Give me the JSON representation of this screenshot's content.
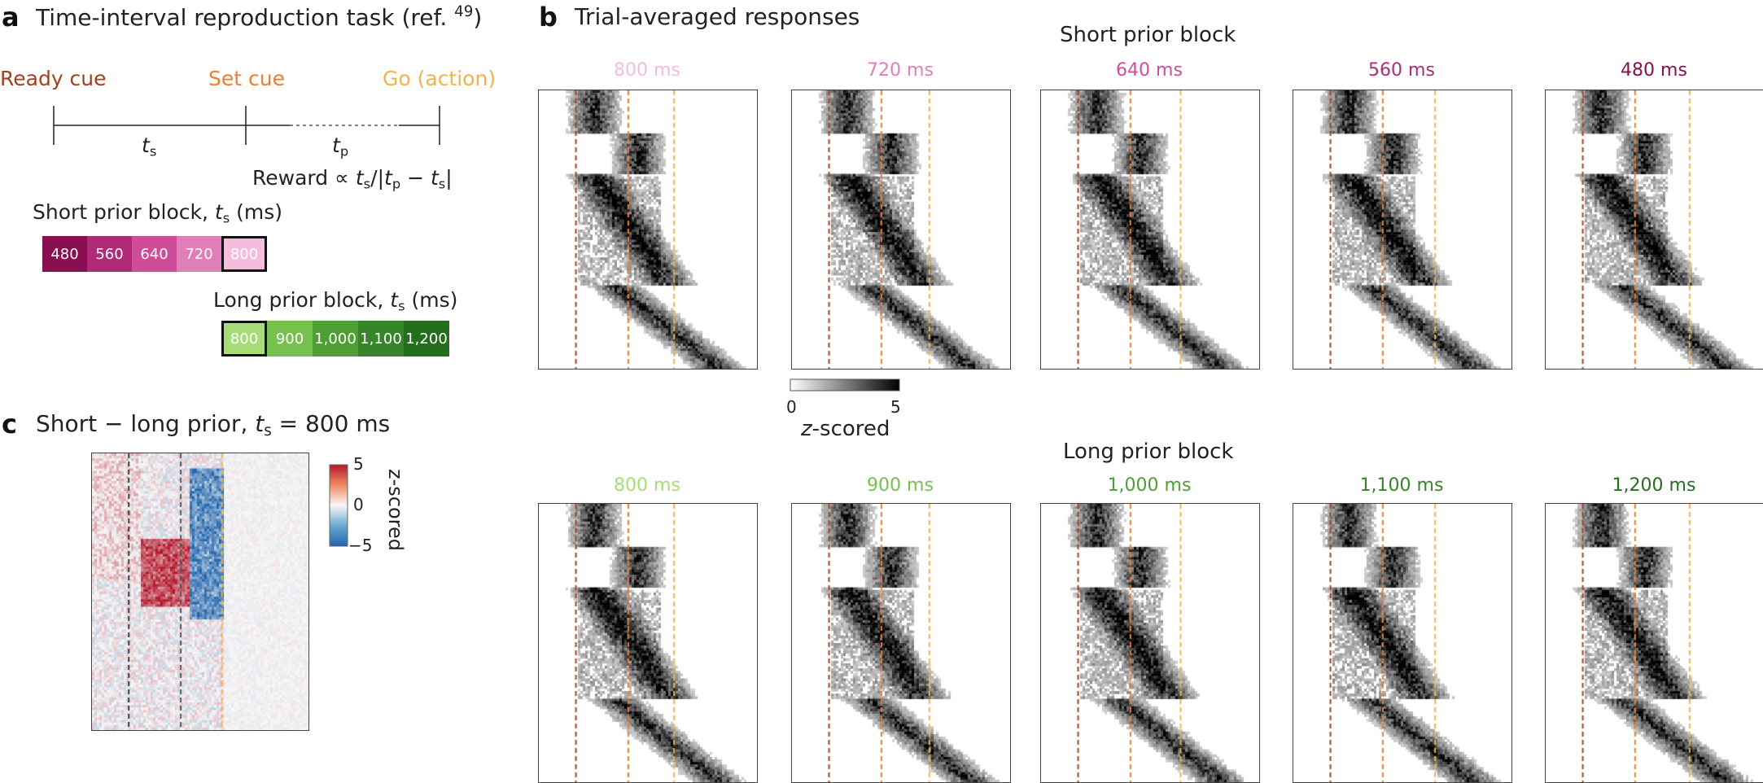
{
  "panel_a": {
    "letter": "a",
    "title": "Time-interval reproduction task (ref. ",
    "ref_num": "49",
    "title_close": ")",
    "ready_cue": "Ready cue",
    "set_cue": "Set cue",
    "go_cue": "Go (action)",
    "ts_main": "t",
    "ts_sub": "s",
    "tp_main": "t",
    "tp_sub": "p",
    "reward_text": "Reward ∝ ",
    "reward_formula": "t/|t − t|",
    "short_block_label": "Short prior block, ",
    "long_block_label": "Long prior block, ",
    "ms_unit": " (ms)",
    "short_values": [
      "480",
      "560",
      "640",
      "720",
      "800"
    ],
    "long_values": [
      "800",
      "900",
      "1,000",
      "1,100",
      "1,200"
    ],
    "colors": {
      "ready": "#a0421b",
      "set": "#ee7d2f",
      "go": "#f5b24c",
      "short": [
        "#8a0f51",
        "#b02a78",
        "#cf4d98",
        "#e07fb7",
        "#f4bddb"
      ],
      "long": [
        "#a8dc78",
        "#78c04e",
        "#4d9e34",
        "#37852a",
        "#256e1e"
      ]
    }
  },
  "panel_b": {
    "letter": "b",
    "title": "Trial-averaged responses",
    "short_block_title": "Short prior block",
    "long_block_title": "Long prior block",
    "short_conditions": [
      "800 ms",
      "720 ms",
      "640 ms",
      "560 ms",
      "480 ms"
    ],
    "long_conditions": [
      "800 ms",
      "900 ms",
      "1,000 ms",
      "1,100 ms",
      "1,200 ms"
    ],
    "short_colors": [
      "#f4bddb",
      "#e07fb7",
      "#cf4d98",
      "#b02a78",
      "#8a0f51"
    ],
    "long_colors": [
      "#a8dc78",
      "#78c04e",
      "#4d9e34",
      "#37852a",
      "#256e1e"
    ],
    "colorbar": {
      "min": "0",
      "max": "5",
      "label": "z-scored",
      "label_italic": "z",
      "label_rest": "-scored"
    }
  },
  "panel_c": {
    "letter": "c",
    "title": "Short − long prior, ",
    "title_eq": " = 800 ms",
    "colorbar": {
      "max": "5",
      "mid": "0",
      "min": "−5",
      "label": "z-scored"
    }
  },
  "chart_data": [
    {
      "type": "heatmap",
      "title": "Short prior block",
      "conditions": [
        "800 ms",
        "720 ms",
        "640 ms",
        "560 ms",
        "480 ms"
      ],
      "value_range": [
        0,
        5
      ],
      "colorbar_label": "z-scored"
    },
    {
      "type": "heatmap",
      "title": "Long prior block",
      "conditions": [
        "800 ms",
        "900 ms",
        "1,000 ms",
        "1,100 ms",
        "1,200 ms"
      ],
      "value_range": [
        0,
        5
      ],
      "colorbar_label": "z-scored"
    },
    {
      "type": "heatmap",
      "title": "Short − long prior, ts = 800 ms",
      "value_range": [
        -5,
        5
      ],
      "colorbar_label": "z-scored"
    }
  ]
}
